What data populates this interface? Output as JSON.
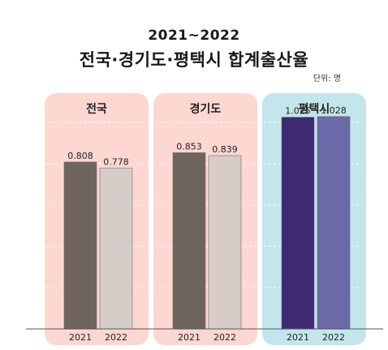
{
  "chart_data": {
    "type": "bar",
    "subtitle": "2021~2022",
    "title": "전국·경기도·평택시 합계출산율",
    "unit": "단위: 명",
    "ylim": [
      0,
      1.2
    ],
    "grid": true,
    "panels": [
      {
        "name": "전국",
        "background": "#fdd7d2",
        "bars": [
          {
            "year": "2021",
            "value": 0.808,
            "label": "0.808",
            "color": "#6f635e"
          },
          {
            "year": "2022",
            "value": 0.778,
            "label": "0.778",
            "color": "#d6ccc8"
          }
        ]
      },
      {
        "name": "경기도",
        "background": "#fdd7d2",
        "bars": [
          {
            "year": "2021",
            "value": 0.853,
            "label": "0.853",
            "color": "#6f635e"
          },
          {
            "year": "2022",
            "value": 0.839,
            "label": "0.839",
            "color": "#d6ccc8"
          }
        ]
      },
      {
        "name": "평택시",
        "background": "#c2e6ec",
        "bars": [
          {
            "year": "2021",
            "value": 1.025,
            "label": "1.025",
            "color": "#3d2a73"
          },
          {
            "year": "2022",
            "value": 1.028,
            "label": "1.028",
            "color": "#6a6aa8"
          }
        ]
      }
    ]
  }
}
